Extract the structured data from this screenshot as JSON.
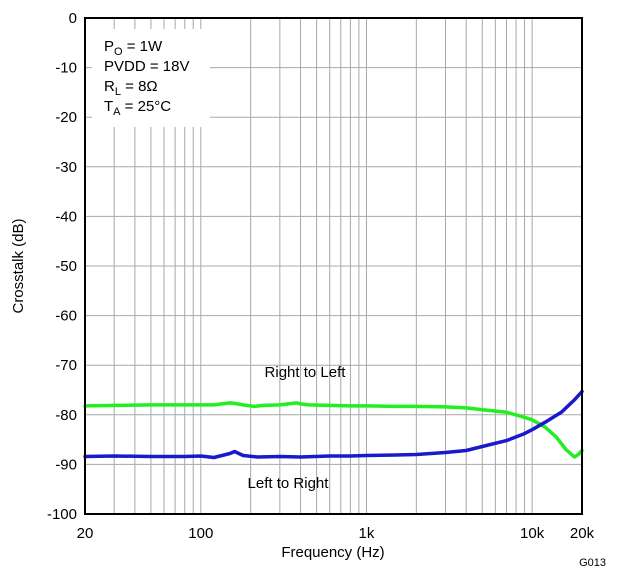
{
  "chart_data": {
    "type": "line",
    "xlabel": "Frequency (Hz)",
    "ylabel": "Crosstalk (dB)",
    "xscale": "log",
    "xlim": [
      20,
      20000
    ],
    "ylim": [
      -100,
      0
    ],
    "grid": true,
    "x_tick_values": [
      20,
      100,
      1000,
      10000,
      20000
    ],
    "x_tick_labels": [
      "20",
      "100",
      "1k",
      "10k",
      "20k"
    ],
    "y_ticks": [
      0,
      -10,
      -20,
      -30,
      -40,
      -50,
      -60,
      -70,
      -80,
      -90,
      -100
    ],
    "conditions": [
      {
        "main": "P",
        "sub": "O",
        "rest": " = 1W"
      },
      {
        "main": "PVDD = 18V",
        "sub": "",
        "rest": ""
      },
      {
        "main": "R",
        "sub": "L",
        "rest": " = 8Ω"
      },
      {
        "main": "T",
        "sub": "A",
        "rest": " = 25°C"
      }
    ],
    "figure_code": "G013",
    "series": [
      {
        "name": "Right to Left",
        "color": "#22ee22",
        "x": [
          20,
          30,
          50,
          80,
          120,
          150,
          160,
          180,
          210,
          240,
          300,
          380,
          400,
          450,
          600,
          800,
          1000,
          1500,
          2000,
          3000,
          4000,
          5000,
          7000,
          9000,
          10000,
          12000,
          14000,
          16000,
          18000,
          19000,
          20000
        ],
        "y": [
          -78.2,
          -78.1,
          -78.0,
          -78.0,
          -78.0,
          -77.6,
          -77.7,
          -78.0,
          -78.3,
          -78.1,
          -78.0,
          -77.6,
          -77.8,
          -78.0,
          -78.1,
          -78.2,
          -78.2,
          -78.3,
          -78.3,
          -78.4,
          -78.6,
          -79.0,
          -79.5,
          -80.5,
          -81.0,
          -82.5,
          -84.5,
          -87.0,
          -88.5,
          -88.0,
          -87.2
        ]
      },
      {
        "name": "Left to Right",
        "color": "#1a1acc",
        "x": [
          20,
          30,
          50,
          80,
          100,
          120,
          150,
          160,
          180,
          220,
          300,
          400,
          600,
          800,
          1000,
          1500,
          2000,
          3000,
          4000,
          5000,
          7000,
          9000,
          10000,
          12000,
          15000,
          18000,
          20000
        ],
        "y": [
          -88.4,
          -88.3,
          -88.4,
          -88.4,
          -88.3,
          -88.6,
          -87.8,
          -87.4,
          -88.2,
          -88.5,
          -88.4,
          -88.5,
          -88.3,
          -88.3,
          -88.2,
          -88.1,
          -88.0,
          -87.6,
          -87.2,
          -86.4,
          -85.2,
          -83.8,
          -83.0,
          -81.5,
          -79.5,
          -77.0,
          -75.3
        ]
      }
    ]
  }
}
